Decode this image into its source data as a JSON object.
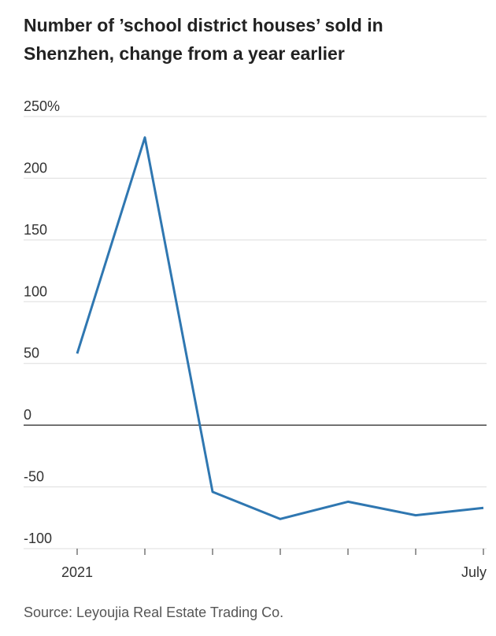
{
  "chart_data": {
    "type": "line",
    "title": "Number of ’school district houses’ sold in Shenzhen, change from a year earlier",
    "source": "Source: Leyoujia Real Estate Trading Co.",
    "categories": [
      "2021",
      null,
      null,
      null,
      null,
      null,
      "July"
    ],
    "series": [
      {
        "name": "Change from a year earlier",
        "color": "#2f77b1",
        "values": [
          58,
          233,
          -54,
          -76,
          -62,
          -73,
          -67
        ]
      }
    ],
    "ylim": [
      -100,
      250
    ],
    "yticks": [
      -100,
      -50,
      0,
      50,
      100,
      150,
      200,
      {
        "value": 250,
        "label": "250%"
      }
    ],
    "grid": true
  }
}
